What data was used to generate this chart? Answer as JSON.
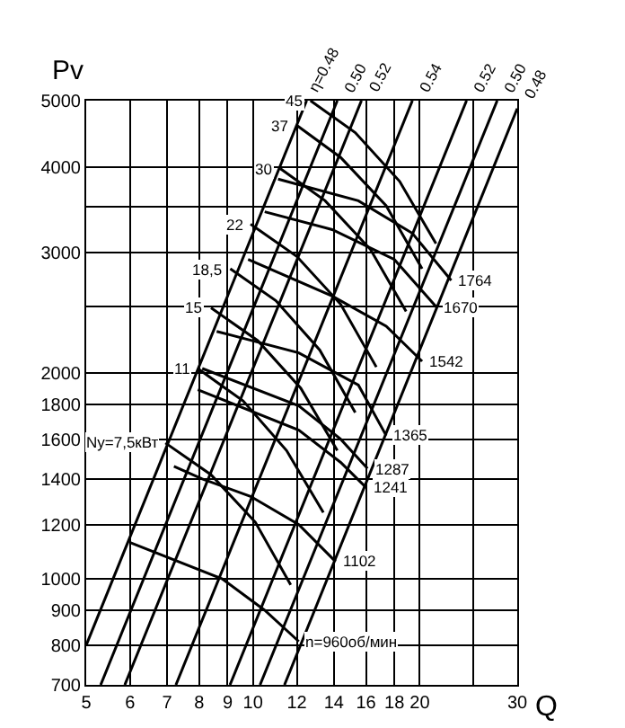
{
  "chart_data": {
    "type": "line",
    "xlabel": "Q",
    "ylabel": "Pv",
    "log": "xy",
    "grid": true,
    "marker": "none",
    "line_style": "solid",
    "xlim": [
      5,
      30
    ],
    "ylim": [
      700,
      5000
    ],
    "xticks": [
      5,
      6,
      7,
      8,
      9,
      10,
      12,
      14,
      16,
      18,
      20,
      {
        "value": 25,
        "label": null
      },
      30
    ],
    "yticks": [
      700,
      800,
      900,
      1000,
      1200,
      1400,
      1600,
      1800,
      2000,
      {
        "value": 2500,
        "label": null
      },
      3000,
      {
        "value": 3500,
        "label": null
      },
      4000,
      5000
    ],
    "series": [
      {
        "color": "#000000",
        "x": [
          5,
          12.5
        ],
        "values": [
          800,
          5000
        ]
      },
      {
        "color": "#000000",
        "x": [
          5.31,
          14.2
        ],
        "values": [
          700,
          5000
        ]
      },
      {
        "color": "#000000",
        "x": [
          5.87,
          15.7
        ],
        "values": [
          700,
          5000
        ]
      },
      {
        "color": "#000000",
        "x": [
          7.26,
          19.4
        ],
        "values": [
          700,
          5000
        ]
      },
      {
        "color": "#000000",
        "x": [
          9.09,
          24.3
        ],
        "values": [
          700,
          5000
        ]
      },
      {
        "color": "#000000",
        "x": [
          10.3,
          27.6
        ],
        "values": [
          700,
          5000
        ]
      },
      {
        "color": "#000000",
        "x": [
          11.4,
          30
        ],
        "values": [
          700,
          4870
        ]
      },
      {
        "color": "#000000",
        "x": [
          12.7,
          15.3,
          18.4,
          21.4
        ],
        "values": [
          5000,
          4490,
          3810,
          3090
        ]
      },
      {
        "color": "#000000",
        "x": [
          12.0,
          14.4,
          17.4,
          20.2
        ],
        "values": [
          4600,
          4130,
          3510,
          2840
        ]
      },
      {
        "color": "#000000",
        "x": [
          11.2,
          13.5,
          16.3,
          18.9
        ],
        "values": [
          3980,
          3570,
          3030,
          2460
        ]
      },
      {
        "color": "#000000",
        "x": [
          9.9,
          12.0,
          14.4,
          16.7
        ],
        "values": [
          3300,
          2960,
          2520,
          2040
        ]
      },
      {
        "color": "#000000",
        "x": [
          9.1,
          11.0,
          13.2,
          15.3
        ],
        "values": [
          2840,
          2550,
          2160,
          1750
        ]
      },
      {
        "color": "#000000",
        "x": [
          8.4,
          10.2,
          12.2,
          14.2
        ],
        "values": [
          2490,
          2230,
          1900,
          1540
        ]
      },
      {
        "color": "#000000",
        "x": [
          7.95,
          9.6,
          11.5,
          13.4
        ],
        "values": [
          2030,
          1820,
          1540,
          1250
        ]
      },
      {
        "color": "#000000",
        "x": [
          6.95,
          8.4,
          10.1,
          11.7
        ],
        "values": [
          1580,
          1420,
          1210,
          980
        ]
      },
      {
        "color": "#000000",
        "x": [
          11.1,
          15.5,
          19.4,
          22.8
        ],
        "values": [
          3840,
          3570,
          3200,
          2730
        ]
      },
      {
        "color": "#000000",
        "x": [
          10.5,
          13.9,
          18.0,
          21.5
        ],
        "values": [
          3440,
          3240,
          2930,
          2490
        ]
      },
      {
        "color": "#000000",
        "x": [
          9.8,
          13.9,
          17.4,
          20.2
        ],
        "values": [
          2930,
          2590,
          2340,
          2080
        ]
      },
      {
        "color": "#000000",
        "x": [
          8.6,
          12.1,
          15.5,
          17.4
        ],
        "values": [
          2300,
          2140,
          1920,
          1620
        ]
      },
      {
        "color": "#000000",
        "x": [
          8.1,
          12.1,
          14.4,
          16.1
        ],
        "values": [
          2030,
          1790,
          1600,
          1450
        ]
      },
      {
        "color": "#000000",
        "x": [
          7.95,
          12.1,
          14.4,
          16.0
        ],
        "values": [
          1890,
          1650,
          1480,
          1360
        ]
      },
      {
        "color": "#000000",
        "x": [
          7.2,
          8.1,
          9.9,
          12.1,
          14.1
        ],
        "values": [
          1460,
          1400,
          1320,
          1200,
          1060
        ]
      },
      {
        "color": "#000000",
        "x": [
          6.0,
          8.8,
          10.5,
          12.1
        ],
        "values": [
          1130,
          1000,
          900,
          810
        ]
      }
    ],
    "annotations": [
      {
        "text": "η=0.48",
        "x": 12.5,
        "y": 5000
      },
      {
        "text": "0.50",
        "x": 14.2,
        "y": 5000
      },
      {
        "text": "0.52",
        "x": 15.7,
        "y": 5000
      },
      {
        "text": "0.54",
        "x": 19.4,
        "y": 5000
      },
      {
        "text": "0.52",
        "x": 24.3,
        "y": 5000
      },
      {
        "text": "0.50",
        "x": 27.6,
        "y": 5000
      },
      {
        "text": "0.48",
        "x": 30,
        "y": 4870
      },
      {
        "text": "45",
        "x": 12.7,
        "y": 5000
      },
      {
        "text": "37",
        "x": 12.0,
        "y": 4600
      },
      {
        "text": "30",
        "x": 11.2,
        "y": 3980
      },
      {
        "text": "22",
        "x": 9.9,
        "y": 3300
      },
      {
        "text": "18,5",
        "x": 9.1,
        "y": 2840
      },
      {
        "text": "15",
        "x": 8.4,
        "y": 2490
      },
      {
        "text": "11",
        "x": 7.95,
        "y": 2030
      },
      {
        "text": "Ny=7,5кВт",
        "x": 6.95,
        "y": 1580
      },
      {
        "text": "1764",
        "x": 22.8,
        "y": 2730
      },
      {
        "text": "1670",
        "x": 21.5,
        "y": 2490
      },
      {
        "text": "1542",
        "x": 20.2,
        "y": 2080
      },
      {
        "text": "1365",
        "x": 17.4,
        "y": 1620
      },
      {
        "text": "1287",
        "x": 16.1,
        "y": 1450
      },
      {
        "text": "1241",
        "x": 16.0,
        "y": 1360
      },
      {
        "text": "1102",
        "x": 14.1,
        "y": 1060
      },
      {
        "text": "n=960об/мин",
        "x": 12.1,
        "y": 810
      }
    ]
  }
}
